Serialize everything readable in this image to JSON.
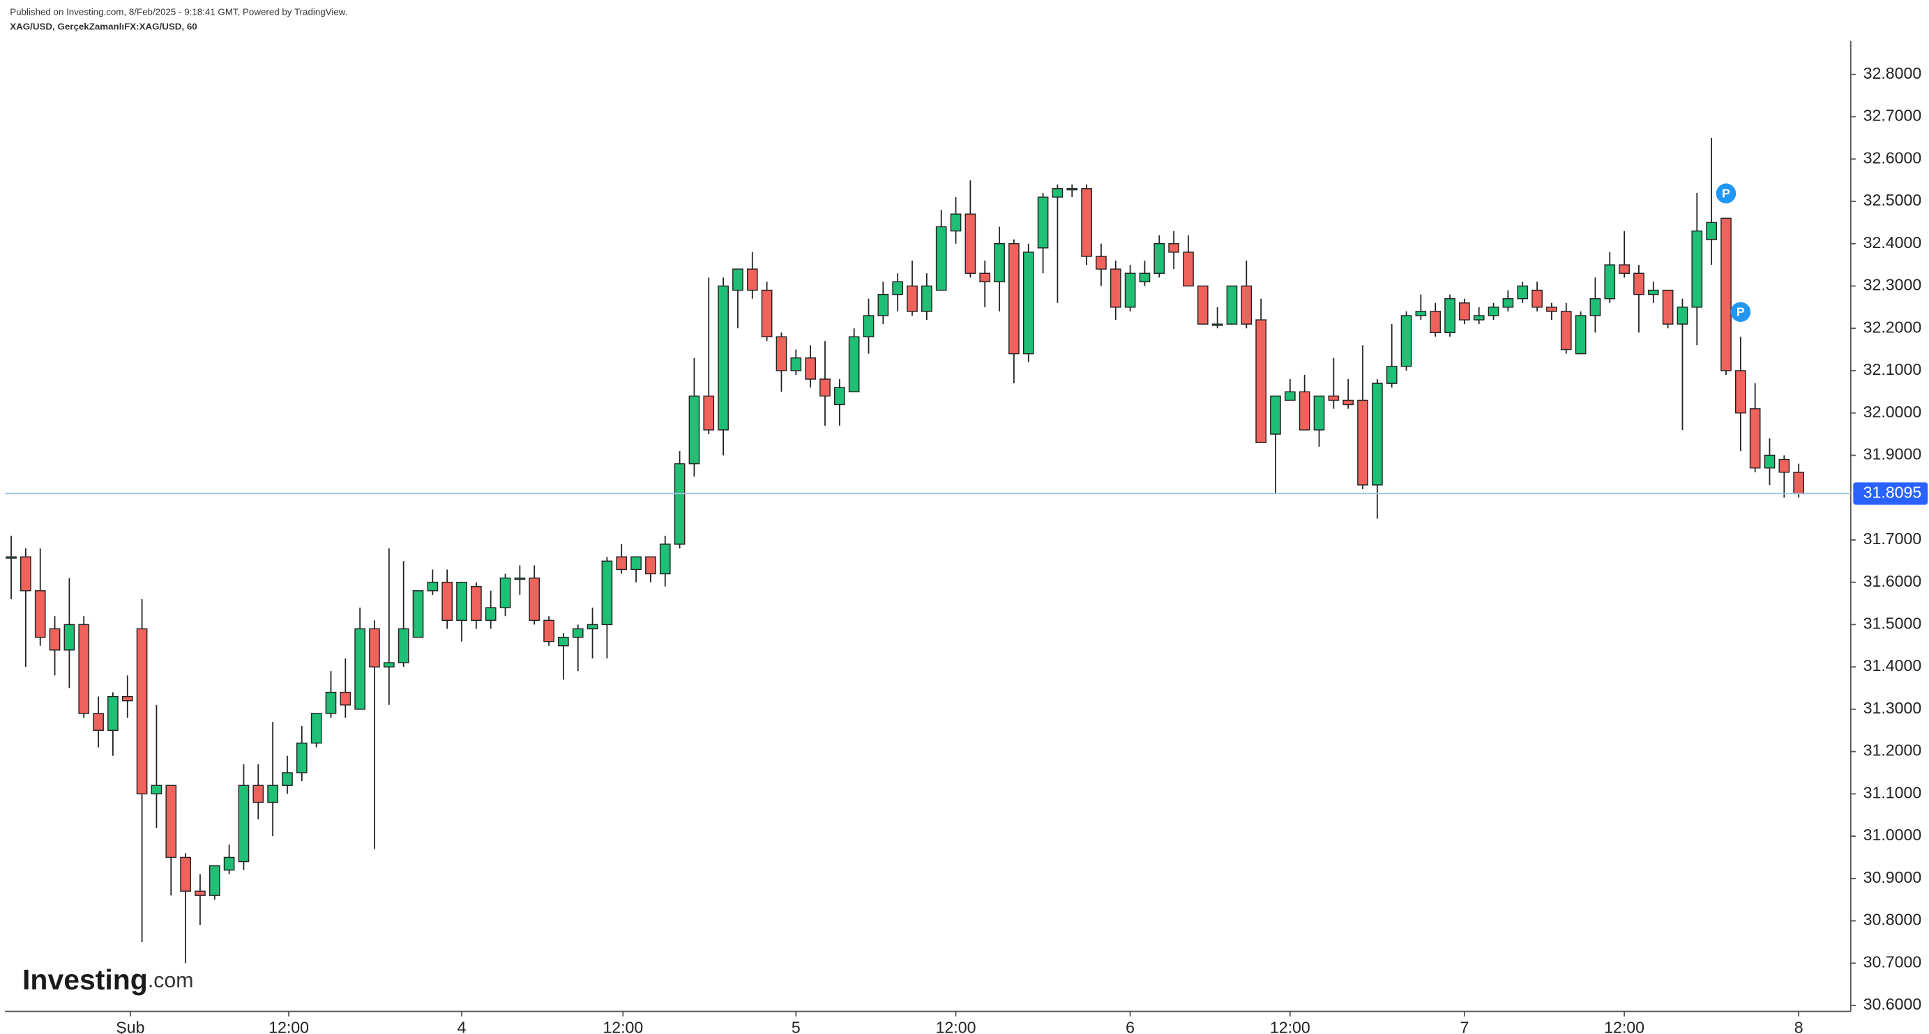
{
  "chart_data": {
    "type": "candlestick",
    "published": "Published on Investing.com, 8/Feb/2025 - 9:18:41 GMT, Powered by TradingView.",
    "symbol": "XAG/USD, GerçekZamanlıFX:XAG/USD, 60",
    "logo_main": "Investing",
    "logo_suffix": ".com",
    "up_color": "#1fbf75",
    "down_color": "#f0625c",
    "categories": [
      null,
      null,
      null,
      null,
      null,
      null,
      null,
      null,
      null,
      null,
      null,
      null,
      null,
      null,
      null,
      null,
      null,
      null,
      null,
      null,
      null,
      null,
      null,
      null,
      null,
      null,
      null,
      null,
      null,
      null,
      null,
      null,
      null,
      null,
      null,
      null,
      null,
      null,
      null,
      null,
      null,
      null,
      null,
      null,
      null,
      null,
      null,
      null,
      null,
      null,
      null,
      null,
      null,
      null,
      null,
      null,
      null,
      null,
      null,
      null,
      null,
      null,
      null,
      null,
      null,
      null,
      null,
      null,
      null,
      null,
      null,
      null,
      null,
      null,
      null,
      null,
      null,
      null,
      null,
      null,
      null,
      null,
      null,
      null,
      null,
      null,
      null,
      null,
      null,
      null,
      null,
      null,
      null,
      null,
      null,
      null,
      null,
      null,
      null,
      null,
      null,
      null,
      null,
      null,
      null,
      null,
      null,
      null,
      null,
      null,
      null,
      null,
      null,
      null,
      null,
      null,
      null,
      null,
      null,
      null,
      null,
      null,
      null,
      null
    ],
    "open": [
      31.66,
      31.66,
      31.58,
      31.49,
      31.44,
      31.5,
      31.29,
      31.25,
      31.33,
      31.49,
      31.1,
      31.12,
      30.95,
      30.87,
      30.86,
      30.92,
      30.94,
      31.12,
      31.08,
      31.12,
      31.15,
      31.22,
      31.29,
      31.34,
      31.3,
      31.49,
      31.4,
      31.41,
      31.47,
      31.58,
      31.6,
      31.51,
      31.59,
      31.51,
      31.54,
      31.61,
      31.61,
      31.51,
      31.45,
      31.47,
      31.49,
      31.5,
      31.66,
      31.63,
      31.66,
      31.62,
      31.69,
      31.88,
      32.04,
      31.96,
      32.29,
      32.34,
      32.29,
      32.18,
      32.1,
      32.13,
      32.08,
      32.02,
      32.05,
      32.18,
      32.23,
      32.28,
      32.3,
      32.24,
      32.29,
      32.43,
      32.47,
      32.33,
      32.31,
      32.4,
      32.14,
      32.39,
      32.51,
      32.53,
      32.53,
      32.37,
      32.34,
      32.25,
      32.31,
      32.33,
      32.4,
      32.38,
      32.3,
      32.21,
      32.21,
      32.3,
      32.22,
      31.95,
      32.03,
      32.05,
      31.96,
      32.04,
      32.03,
      32.03,
      31.83,
      32.07,
      32.11,
      32.23,
      32.24,
      32.19,
      32.26,
      32.22,
      32.23,
      32.25,
      32.27,
      32.29,
      32.25,
      32.24,
      32.14,
      32.23,
      32.27,
      32.35,
      32.33,
      32.28,
      32.29,
      32.21,
      32.25,
      32.41,
      32.46,
      32.1,
      32.01,
      31.87,
      31.89,
      31.86
    ],
    "high": [
      31.71,
      31.68,
      31.68,
      31.52,
      31.61,
      31.52,
      31.33,
      31.34,
      31.38,
      31.56,
      31.31,
      31.12,
      30.96,
      30.91,
      30.93,
      30.98,
      31.17,
      31.17,
      31.27,
      31.19,
      31.26,
      31.29,
      31.39,
      31.42,
      31.54,
      31.51,
      31.68,
      31.65,
      31.58,
      31.63,
      31.63,
      31.6,
      31.6,
      31.58,
      31.62,
      31.64,
      31.64,
      31.52,
      31.48,
      31.5,
      31.54,
      31.66,
      31.69,
      31.66,
      31.66,
      31.71,
      31.91,
      32.13,
      32.32,
      32.32,
      32.34,
      32.38,
      32.31,
      32.19,
      32.15,
      32.16,
      32.17,
      32.08,
      32.2,
      32.27,
      32.31,
      32.33,
      32.36,
      32.33,
      32.48,
      32.51,
      32.55,
      32.36,
      32.44,
      32.41,
      32.4,
      32.52,
      32.54,
      32.54,
      32.54,
      32.4,
      32.36,
      32.35,
      32.36,
      32.42,
      32.43,
      32.42,
      32.3,
      32.25,
      32.3,
      32.36,
      32.27,
      32.04,
      32.08,
      32.09,
      32.04,
      32.13,
      32.08,
      32.16,
      32.08,
      32.21,
      32.24,
      32.28,
      32.26,
      32.28,
      32.27,
      32.25,
      32.26,
      32.29,
      32.31,
      32.31,
      32.26,
      32.26,
      32.24,
      32.32,
      32.38,
      32.43,
      32.35,
      32.31,
      32.29,
      32.27,
      32.52,
      32.65,
      32.46,
      32.18,
      32.07,
      31.94,
      31.9,
      31.88
    ],
    "low": [
      31.56,
      31.4,
      31.45,
      31.38,
      31.35,
      31.28,
      31.21,
      31.19,
      31.28,
      30.75,
      31.02,
      30.86,
      30.7,
      30.79,
      30.85,
      30.91,
      30.92,
      31.04,
      31.0,
      31.1,
      31.13,
      31.21,
      31.28,
      31.28,
      31.3,
      30.97,
      31.31,
      31.4,
      31.47,
      31.57,
      31.49,
      31.46,
      31.49,
      31.49,
      31.52,
      31.57,
      31.5,
      31.45,
      31.37,
      31.39,
      31.42,
      31.42,
      31.62,
      31.6,
      31.6,
      31.59,
      31.68,
      31.85,
      31.95,
      31.9,
      32.2,
      32.27,
      32.17,
      32.05,
      32.09,
      32.06,
      31.97,
      31.97,
      32.05,
      32.14,
      32.21,
      32.24,
      32.23,
      32.22,
      32.29,
      32.4,
      32.32,
      32.25,
      32.24,
      32.07,
      32.12,
      32.33,
      32.26,
      32.51,
      32.35,
      32.3,
      32.22,
      32.24,
      32.3,
      32.32,
      32.34,
      32.3,
      32.21,
      32.2,
      32.21,
      32.2,
      31.93,
      31.81,
      32.03,
      31.96,
      31.92,
      32.01,
      32.01,
      31.82,
      31.75,
      32.06,
      32.1,
      32.22,
      32.18,
      32.18,
      32.21,
      32.21,
      32.22,
      32.24,
      32.26,
      32.24,
      32.22,
      32.14,
      32.14,
      32.19,
      32.26,
      32.32,
      32.19,
      32.26,
      32.2,
      31.96,
      32.16,
      32.35,
      32.09,
      31.91,
      31.86,
      31.83,
      31.8,
      31.8
    ],
    "close": [
      31.66,
      31.58,
      31.47,
      31.44,
      31.5,
      31.29,
      31.25,
      31.33,
      31.32,
      31.1,
      31.12,
      30.95,
      30.87,
      30.86,
      30.93,
      30.95,
      31.12,
      31.08,
      31.12,
      31.15,
      31.22,
      31.29,
      31.34,
      31.31,
      31.49,
      31.4,
      31.41,
      31.49,
      31.58,
      31.6,
      31.51,
      31.6,
      31.51,
      31.54,
      31.61,
      31.61,
      31.51,
      31.46,
      31.47,
      31.49,
      31.5,
      31.65,
      31.63,
      31.66,
      31.62,
      31.69,
      31.88,
      32.04,
      31.96,
      32.3,
      32.34,
      32.29,
      32.18,
      32.1,
      32.13,
      32.08,
      32.04,
      32.06,
      32.18,
      32.23,
      32.28,
      32.31,
      32.24,
      32.3,
      32.44,
      32.47,
      32.33,
      32.31,
      32.4,
      32.14,
      32.38,
      32.51,
      32.53,
      32.53,
      32.37,
      32.34,
      32.25,
      32.33,
      32.33,
      32.4,
      32.38,
      32.3,
      32.21,
      32.21,
      32.3,
      32.21,
      31.93,
      32.04,
      32.05,
      31.96,
      32.04,
      32.03,
      32.02,
      31.83,
      32.07,
      32.11,
      32.23,
      32.24,
      32.19,
      32.27,
      32.22,
      32.23,
      32.25,
      32.27,
      32.3,
      32.25,
      32.24,
      32.15,
      32.23,
      32.27,
      32.35,
      32.33,
      32.28,
      32.29,
      32.21,
      32.25,
      32.43,
      32.45,
      32.1,
      32.0,
      31.87,
      31.9,
      31.86,
      31.81
    ],
    "last_price": 31.8095,
    "markers": [
      {
        "label": "P",
        "index": 118
      },
      {
        "label": "P",
        "index": 119
      }
    ],
    "ylim": [
      30.586,
      32.879
    ],
    "yticks": [
      {
        "value": 30.6,
        "label": "30.6000"
      },
      {
        "value": 30.7,
        "label": "30.7000"
      },
      {
        "value": 30.8,
        "label": "30.8000"
      },
      {
        "value": 30.9,
        "label": "30.9000"
      },
      {
        "value": 31.0,
        "label": "31.0000"
      },
      {
        "value": 31.1,
        "label": "31.1000"
      },
      {
        "value": 31.2,
        "label": "31.2000"
      },
      {
        "value": 31.3,
        "label": "31.3000"
      },
      {
        "value": 31.4,
        "label": "31.4000"
      },
      {
        "value": 31.5,
        "label": "31.5000"
      },
      {
        "value": 31.6,
        "label": "31.6000"
      },
      {
        "value": 31.7,
        "label": "31.7000"
      },
      {
        "value": 31.9,
        "label": "31.9000"
      },
      {
        "value": 32.0,
        "label": "32.0000"
      },
      {
        "value": 32.1,
        "label": "32.1000"
      },
      {
        "value": 32.2,
        "label": "32.2000"
      },
      {
        "value": 32.3,
        "label": "32.3000"
      },
      {
        "value": 32.4,
        "label": "32.4000"
      },
      {
        "value": 32.5,
        "label": "32.5000"
      },
      {
        "value": 32.6,
        "label": "32.6000"
      },
      {
        "value": 32.7,
        "label": "32.7000"
      },
      {
        "value": 32.8,
        "label": "32.8000"
      }
    ],
    "xticks": [
      {
        "value": 8.2,
        "label": "Şub"
      },
      {
        "value": 19.1,
        "label": "12:00"
      },
      {
        "value": 31,
        "label": "4"
      },
      {
        "value": 42.1,
        "label": "12:00"
      },
      {
        "value": 54,
        "label": "5"
      },
      {
        "value": 65,
        "label": "12:00"
      },
      {
        "value": 77,
        "label": "6"
      },
      {
        "value": 88,
        "label": "12:00"
      },
      {
        "value": 100,
        "label": "7"
      },
      {
        "value": 111,
        "label": "12:00"
      },
      {
        "value": 123,
        "label": "8"
      }
    ],
    "grid": false
  }
}
